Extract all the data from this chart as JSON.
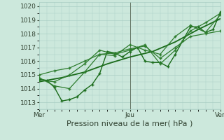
{
  "xlabel": "Pression niveau de la mer( hPa )",
  "bg_color": "#cce8dc",
  "grid_color": "#aacfc4",
  "xlim": [
    0,
    48
  ],
  "ylim": [
    1012.5,
    1020.3
  ],
  "yticks": [
    1013,
    1014,
    1015,
    1016,
    1017,
    1018,
    1019,
    1020
  ],
  "xtick_positions": [
    0,
    24,
    48
  ],
  "xtick_labels": [
    "Mer",
    "Jeu",
    "Ven"
  ],
  "series": [
    [
      0,
      1014.7,
      2,
      1014.6,
      4,
      1014.1,
      6,
      1013.1,
      8,
      1013.2,
      10,
      1013.4,
      12,
      1013.9,
      14,
      1014.3,
      16,
      1015.1,
      18,
      1016.7,
      20,
      1016.6,
      22,
      1016.3,
      24,
      1016.7,
      26,
      1017.0,
      28,
      1016.0,
      30,
      1015.9,
      32,
      1015.9,
      34,
      1015.6,
      36,
      1016.5,
      38,
      1017.5,
      40,
      1018.5,
      42,
      1018.5,
      44,
      1018.1,
      46,
      1018.3,
      48,
      1019.6
    ],
    [
      0,
      1014.5,
      6,
      1014.8,
      12,
      1015.2,
      18,
      1015.8,
      24,
      1016.3,
      30,
      1016.7,
      36,
      1017.4,
      42,
      1018.3,
      48,
      1019.1
    ],
    [
      0,
      1014.8,
      4,
      1014.2,
      8,
      1014.0,
      12,
      1015.2,
      16,
      1016.5,
      20,
      1016.4,
      24,
      1017.2,
      28,
      1016.8,
      32,
      1016.5,
      36,
      1017.8,
      40,
      1018.6,
      44,
      1018.1,
      48,
      1019.4
    ],
    [
      0,
      1014.6,
      4,
      1014.5,
      8,
      1015.0,
      12,
      1015.8,
      16,
      1016.8,
      20,
      1016.5,
      24,
      1016.8,
      28,
      1017.2,
      32,
      1015.8,
      36,
      1016.8,
      40,
      1018.2,
      44,
      1018.8,
      48,
      1019.5
    ],
    [
      0,
      1015.0,
      4,
      1015.3,
      8,
      1015.5,
      12,
      1016.0,
      16,
      1016.5,
      20,
      1016.6,
      24,
      1016.9,
      28,
      1017.1,
      32,
      1016.2,
      36,
      1017.0,
      40,
      1017.8,
      44,
      1018.0,
      48,
      1018.2
    ]
  ],
  "series_styles": [
    {
      "color": "#1a6b1a",
      "lw": 1.0,
      "marker": "+",
      "ms": 3.5,
      "mew": 1.0,
      "ls": "-"
    },
    {
      "color": "#1a6b1a",
      "lw": 1.3,
      "marker": null,
      "ms": 0,
      "mew": 0,
      "ls": "-"
    },
    {
      "color": "#2e7d2e",
      "lw": 0.9,
      "marker": "+",
      "ms": 3.5,
      "mew": 1.0,
      "ls": "-"
    },
    {
      "color": "#2e7d2e",
      "lw": 0.9,
      "marker": "+",
      "ms": 3.5,
      "mew": 1.0,
      "ls": "-"
    },
    {
      "color": "#2e7d2e",
      "lw": 0.9,
      "marker": "+",
      "ms": 3.5,
      "mew": 1.0,
      "ls": "-"
    }
  ],
  "vline_x": 24,
  "vline_color": "#667766",
  "font_color": "#334433",
  "font_size_tick": 6.5,
  "font_size_label": 8
}
